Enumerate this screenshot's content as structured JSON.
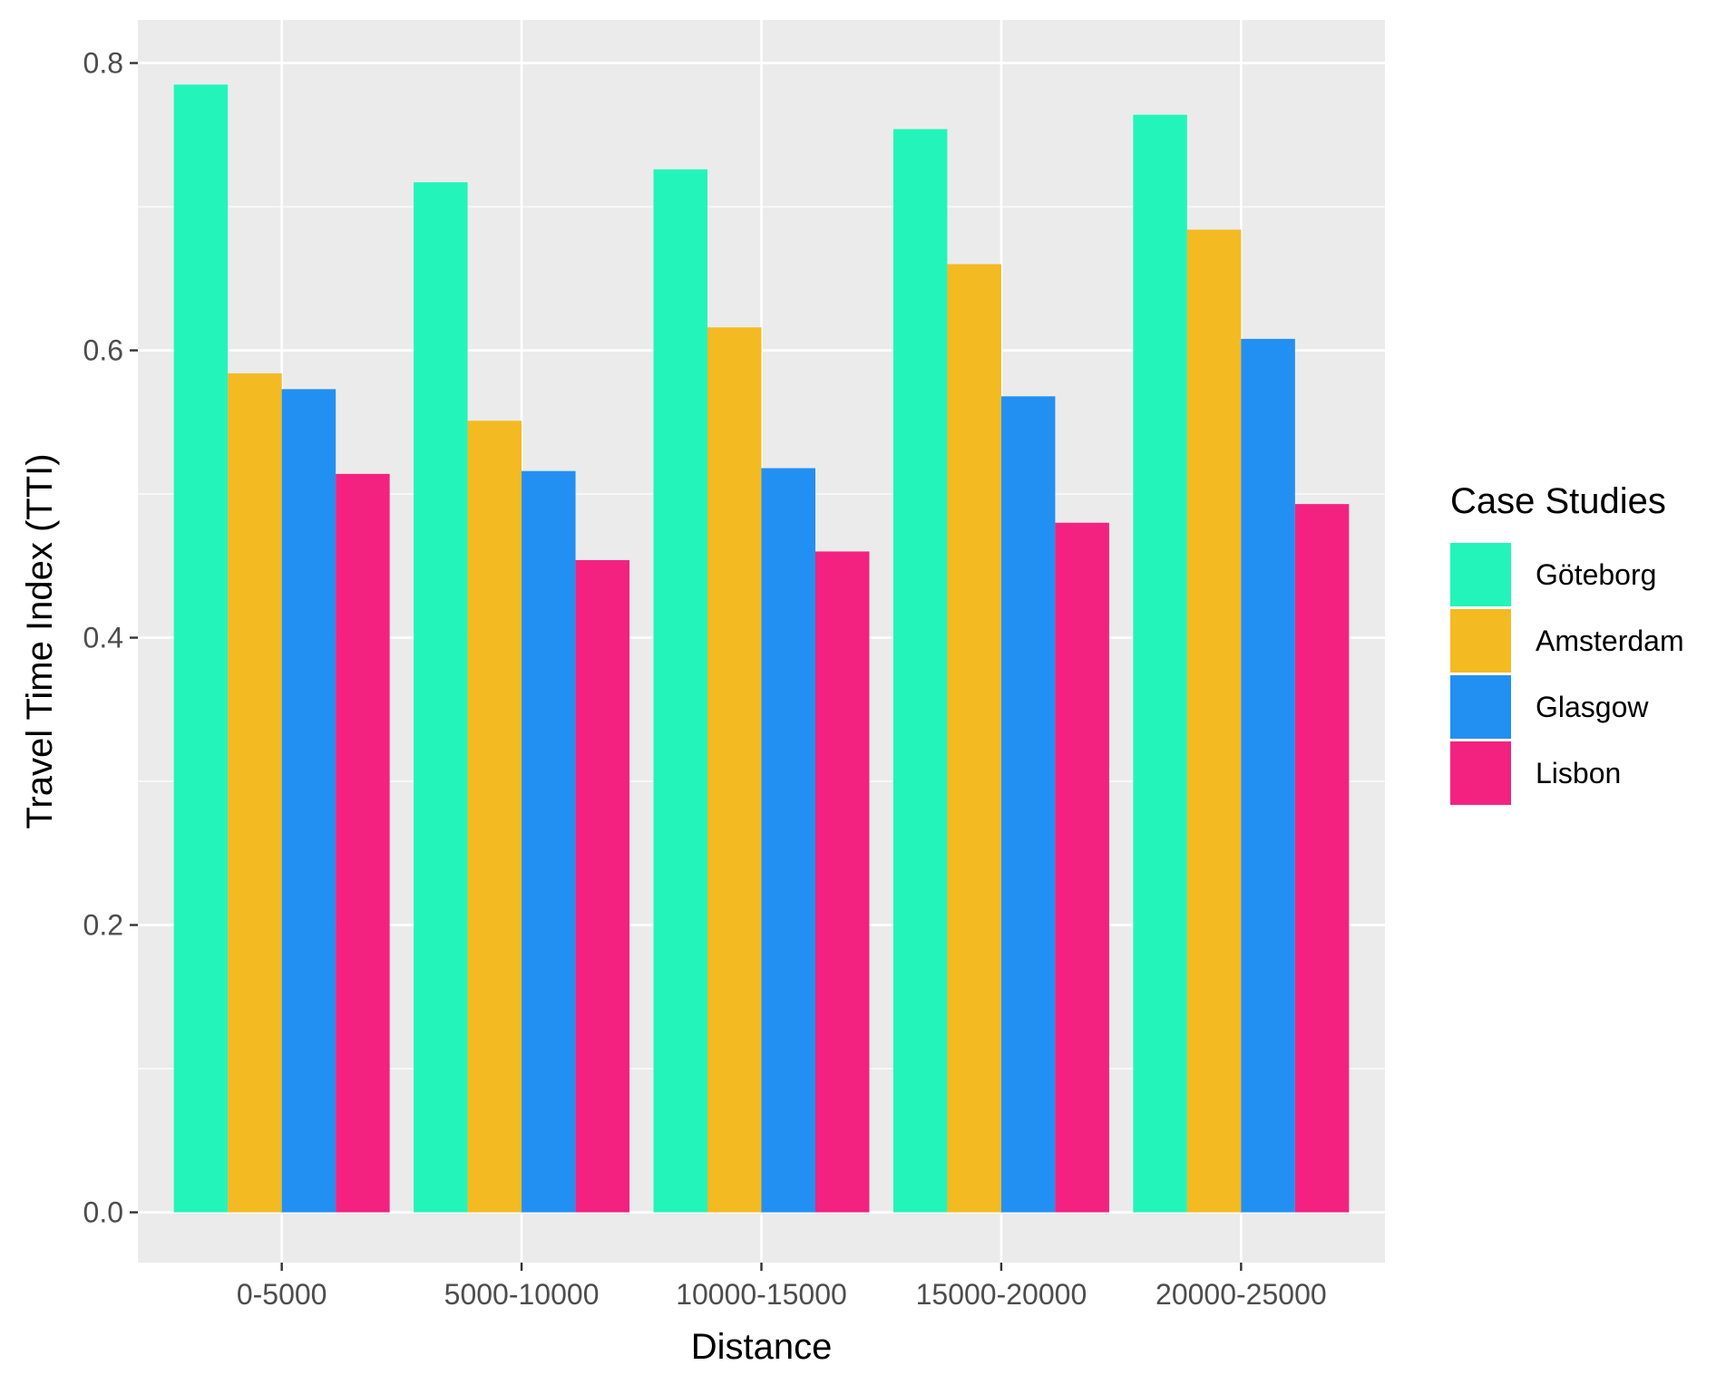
{
  "chart_data": {
    "type": "bar",
    "title": "",
    "xlabel": "Distance",
    "ylabel": "Travel Time Index (TTI)",
    "categories": [
      "0-5000",
      "5000-10000",
      "10000-15000",
      "15000-20000",
      "20000-25000"
    ],
    "series": [
      {
        "name": "Göteborg",
        "color": "#23F5BA",
        "values": [
          0.785,
          0.717,
          0.726,
          0.754,
          0.764
        ]
      },
      {
        "name": "Amsterdam",
        "color": "#F3BA22",
        "values": [
          0.584,
          0.551,
          0.616,
          0.66,
          0.684
        ]
      },
      {
        "name": "Glasgow",
        "color": "#2290F3",
        "values": [
          0.573,
          0.516,
          0.518,
          0.568,
          0.608
        ]
      },
      {
        "name": "Lisbon",
        "color": "#F32280",
        "values": [
          0.514,
          0.454,
          0.46,
          0.48,
          0.493
        ]
      }
    ],
    "ylim": [
      -0.035,
      0.83
    ],
    "yticks": [
      0.0,
      0.2,
      0.4,
      0.6,
      0.8
    ],
    "ytick_labels": [
      "0.0",
      "0.2",
      "0.4",
      "0.6",
      "0.8"
    ],
    "grid": true,
    "panel_background": "#EBEBEB",
    "legend": {
      "title": "Case Studies",
      "position": "right"
    }
  }
}
